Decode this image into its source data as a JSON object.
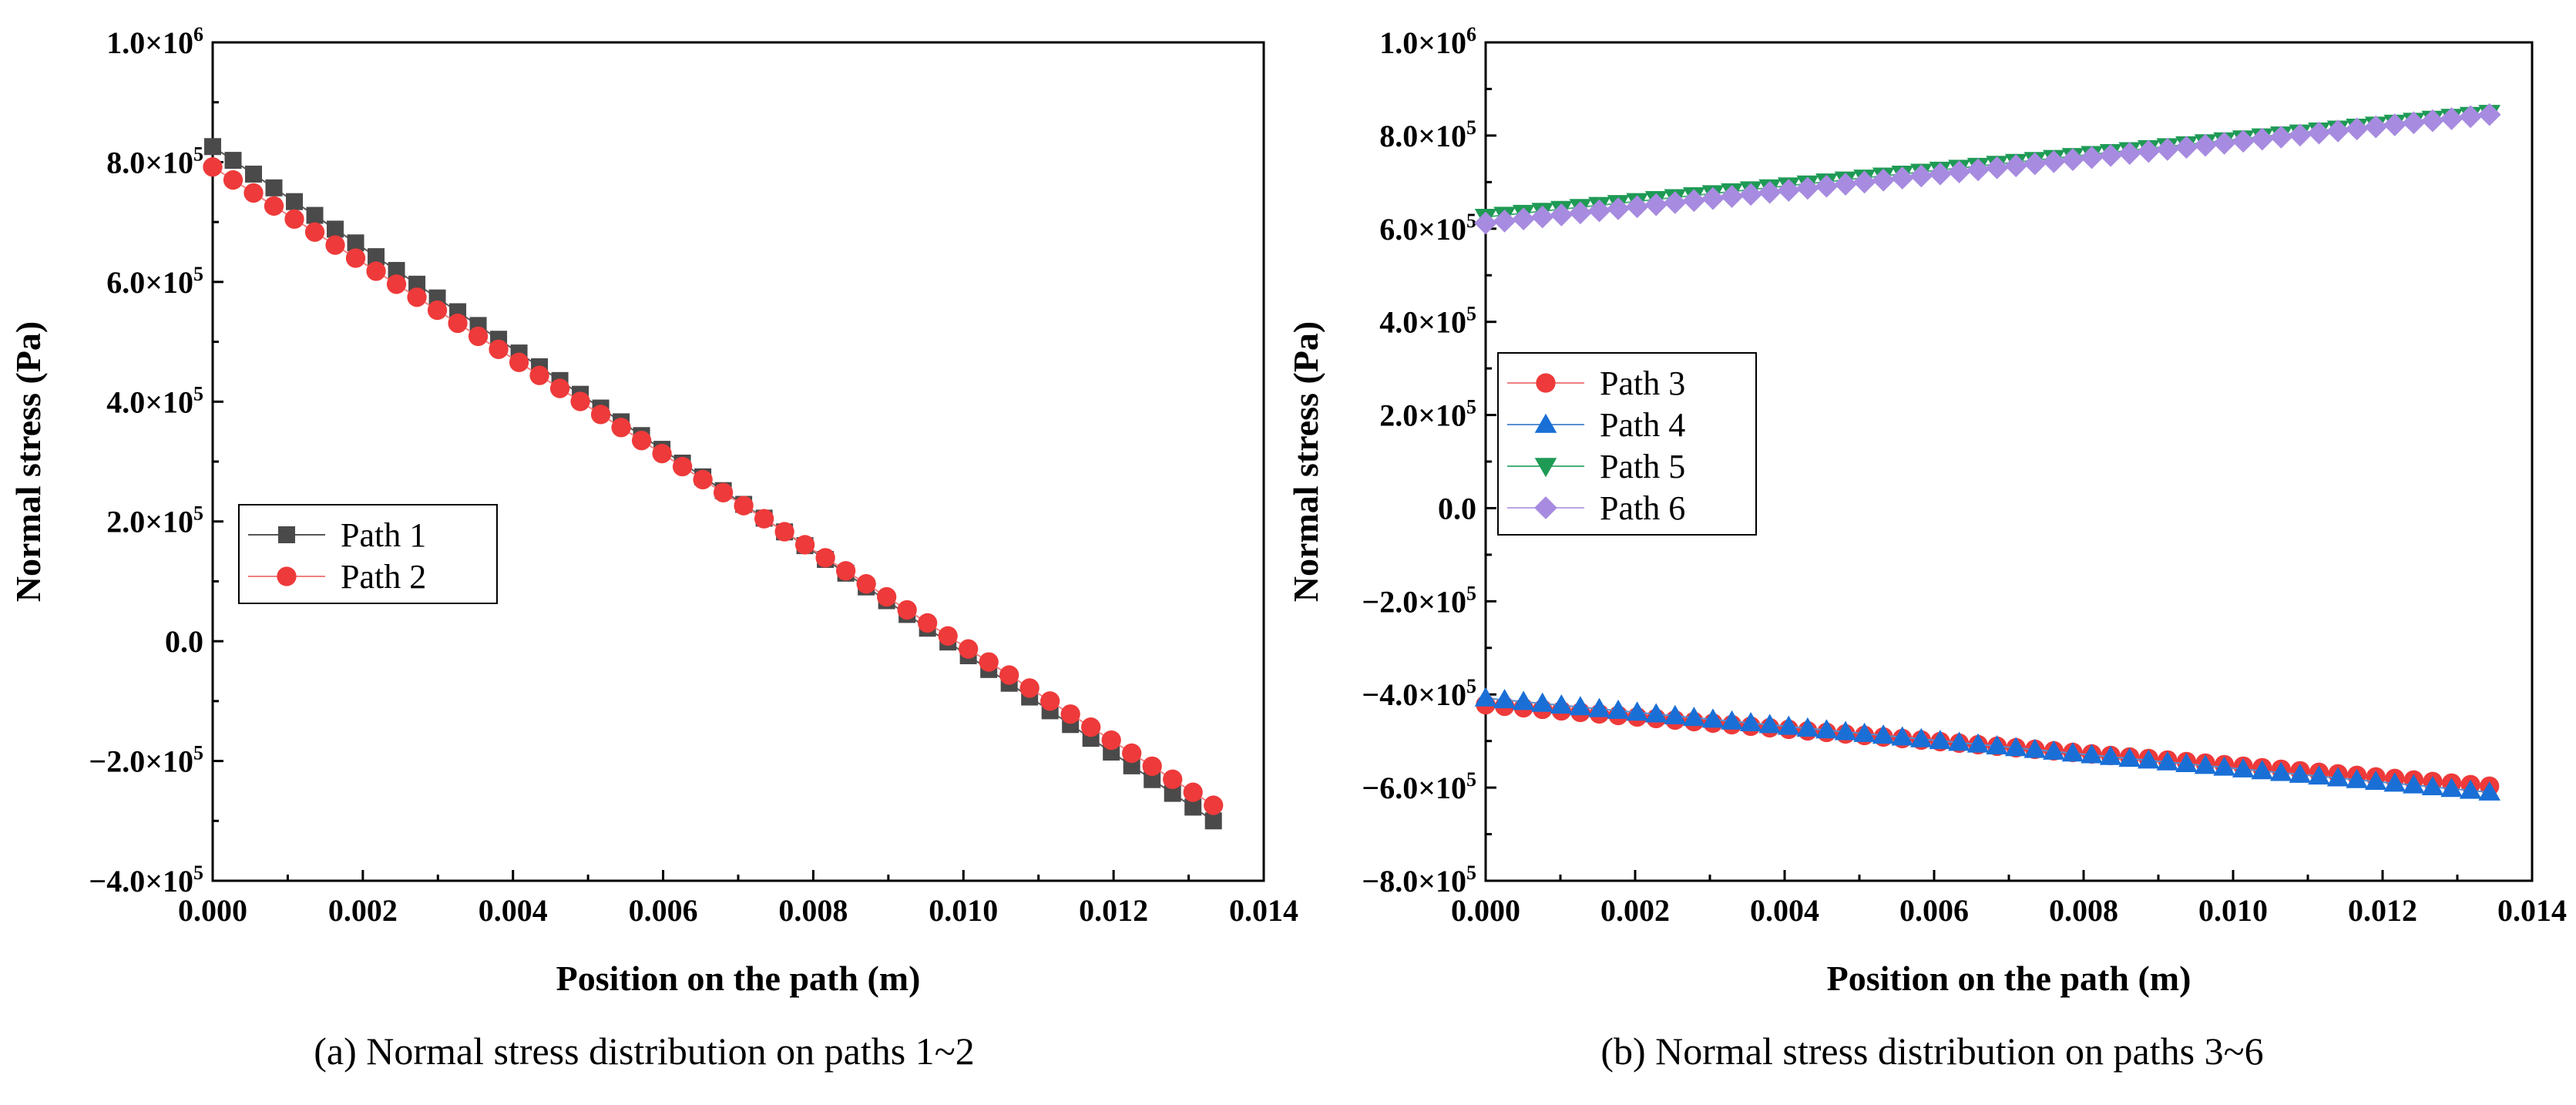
{
  "chart_data": [
    {
      "type": "scatter",
      "caption": "(a) Normal stress distribution on paths 1~2",
      "xlabel": "Position on the path (m)",
      "ylabel": "Normal stress (Pa)",
      "xlim": [
        0.0,
        0.014
      ],
      "ylim": [
        -400000,
        1000000
      ],
      "xticks": [
        "0.000",
        "0.002",
        "0.004",
        "0.006",
        "0.008",
        "0.010",
        "0.012",
        "0.014"
      ],
      "yticks": [
        {
          "base": "1.0×10",
          "exp": "6",
          "value": 1000000
        },
        {
          "base": "8.0×10",
          "exp": "5",
          "value": 800000
        },
        {
          "base": "6.0×10",
          "exp": "5",
          "value": 600000
        },
        {
          "base": "4.0×10",
          "exp": "5",
          "value": 400000
        },
        {
          "base": "2.0×10",
          "exp": "5",
          "value": 200000
        },
        {
          "base": "0.0",
          "exp": "",
          "value": 0
        },
        {
          "base": "−2.0×10",
          "exp": "5",
          "value": -200000
        },
        {
          "base": "−4.0×10",
          "exp": "5",
          "value": -400000
        }
      ],
      "legend_position": "middle-left",
      "series": [
        {
          "name": "Path 1",
          "marker": "square",
          "color": "#4a4a4a",
          "line_color": "#555555",
          "n": 50,
          "start": 826000,
          "end": -300000
        },
        {
          "name": "Path 2",
          "marker": "circle",
          "color": "#ee3a3a",
          "line_color": "#f08080",
          "n": 50,
          "start": 792000,
          "end": -274000
        }
      ],
      "x_end": 0.01333
    },
    {
      "type": "scatter",
      "caption": "(b) Normal stress distribution on paths 3~6",
      "xlabel": "Position on the path (m)",
      "ylabel": "Normal stress (Pa)",
      "xlim": [
        0.0,
        0.014
      ],
      "ylim": [
        -800000,
        1000000
      ],
      "xticks": [
        "0.000",
        "0.002",
        "0.004",
        "0.006",
        "0.008",
        "0.010",
        "0.012",
        "0.014"
      ],
      "yticks": [
        {
          "base": "1.0×10",
          "exp": "6",
          "value": 1000000
        },
        {
          "base": "8.0×10",
          "exp": "5",
          "value": 800000
        },
        {
          "base": "6.0×10",
          "exp": "5",
          "value": 600000
        },
        {
          "base": "4.0×10",
          "exp": "5",
          "value": 400000
        },
        {
          "base": "2.0×10",
          "exp": "5",
          "value": 200000
        },
        {
          "base": "0.0",
          "exp": "",
          "value": 0
        },
        {
          "base": "−2.0×10",
          "exp": "5",
          "value": -200000
        },
        {
          "base": "−4.0×10",
          "exp": "5",
          "value": -400000
        },
        {
          "base": "−6.0×10",
          "exp": "5",
          "value": -600000
        },
        {
          "base": "−8.0×10",
          "exp": "5",
          "value": -800000
        }
      ],
      "legend_position": "middle-left",
      "series": [
        {
          "name": "Path 3",
          "marker": "circle",
          "color": "#ee3a3a",
          "line_color": "#f08080",
          "n": 54,
          "start": -422000,
          "end": -597000
        },
        {
          "name": "Path 4",
          "marker": "triangle-up",
          "color": "#1a6fd6",
          "line_color": "#5a8fd0",
          "n": 54,
          "start": -408000,
          "end": -610000
        },
        {
          "name": "Path 5",
          "marker": "triangle-down",
          "color": "#1e9a55",
          "line_color": "#4caf7a",
          "n": 54,
          "start": 625000,
          "end": 848000
        },
        {
          "name": "Path 6",
          "marker": "diamond",
          "color": "#a78be0",
          "line_color": "#b9a5e8",
          "n": 54,
          "start": 612000,
          "end": 845000
        }
      ],
      "x_end": 0.01343
    }
  ]
}
